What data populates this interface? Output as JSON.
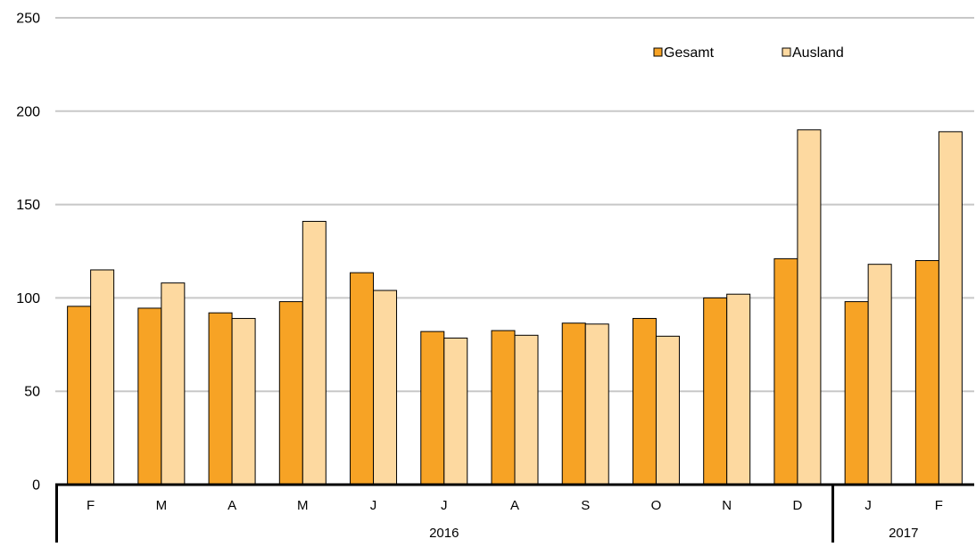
{
  "chart_data": {
    "type": "bar",
    "categories": [
      "F",
      "M",
      "A",
      "M",
      "J",
      "J",
      "A",
      "S",
      "O",
      "N",
      "D",
      "J",
      "F"
    ],
    "groups": [
      {
        "label": "2016",
        "count": 11
      },
      {
        "label": "2017",
        "count": 2
      }
    ],
    "series": [
      {
        "name": "Gesamt",
        "color": "#F7A325",
        "values": [
          95.5,
          94.5,
          92,
          98,
          113.5,
          82,
          82.5,
          86.5,
          89,
          100,
          121,
          98,
          120
        ]
      },
      {
        "name": "Ausland",
        "color": "#FDD9A0",
        "values": [
          115,
          108,
          89,
          141,
          104,
          78.5,
          80,
          86,
          79.5,
          102,
          190,
          118,
          189
        ]
      }
    ],
    "ylim": [
      0,
      250
    ],
    "yticks": [
      0,
      50,
      100,
      150,
      200,
      250
    ],
    "grid": true,
    "legend_position": "top-right",
    "title": "",
    "xlabel": "",
    "ylabel": ""
  }
}
